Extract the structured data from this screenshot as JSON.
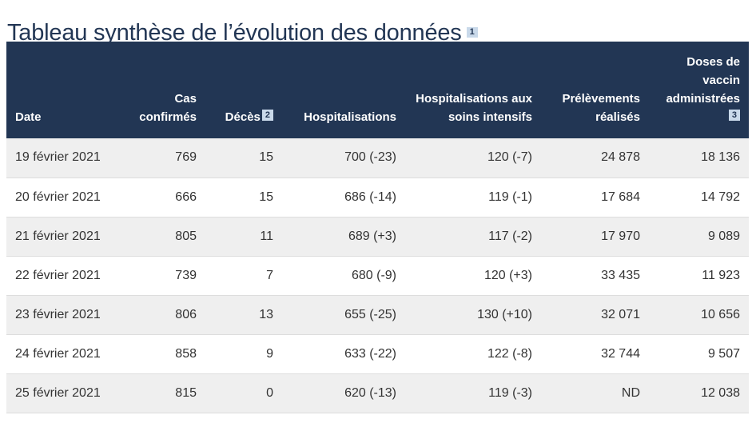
{
  "page": {
    "title": "Tableau synthèse de l’évolution des données",
    "title_note": "1"
  },
  "table": {
    "headers": {
      "date": "Date",
      "cas": "Cas confirmés",
      "deces": "Décès",
      "deces_note": "2",
      "hosp": "Hospitalisations",
      "si": "Hospitalisations aux soins intensifs",
      "prel": "Prélèvements réalisés",
      "doses": "Doses de vaccin administrées",
      "doses_note": "3"
    },
    "rows": [
      [
        "19 février 2021",
        "769",
        "15",
        "700 (-23)",
        "120 (-7)",
        "24 878",
        "18 136"
      ],
      [
        "20 février 2021",
        "666",
        "15",
        "686 (-14)",
        "119 (-1)",
        "17 684",
        "14 792"
      ],
      [
        "21 février 2021",
        "805",
        "11",
        "689 (+3)",
        "117 (-2)",
        "17 970",
        "9 089"
      ],
      [
        "22 février 2021",
        "739",
        "7",
        "680 (-9)",
        "120 (+3)",
        "33 435",
        "11 923"
      ],
      [
        "23 février 2021",
        "806",
        "13",
        "655 (-25)",
        "130 (+10)",
        "32 071",
        "10 656"
      ],
      [
        "24 février 2021",
        "858",
        "9",
        "633 (-22)",
        "122 (-8)",
        "32 744",
        "9 507"
      ],
      [
        "25 février 2021",
        "815",
        "0",
        "620 (-13)",
        "119 (-3)",
        "ND",
        "12 038"
      ]
    ]
  },
  "colors": {
    "header_bg": "#223654",
    "note_bg": "#c9d9ea",
    "row_stripe": "#efefef"
  }
}
